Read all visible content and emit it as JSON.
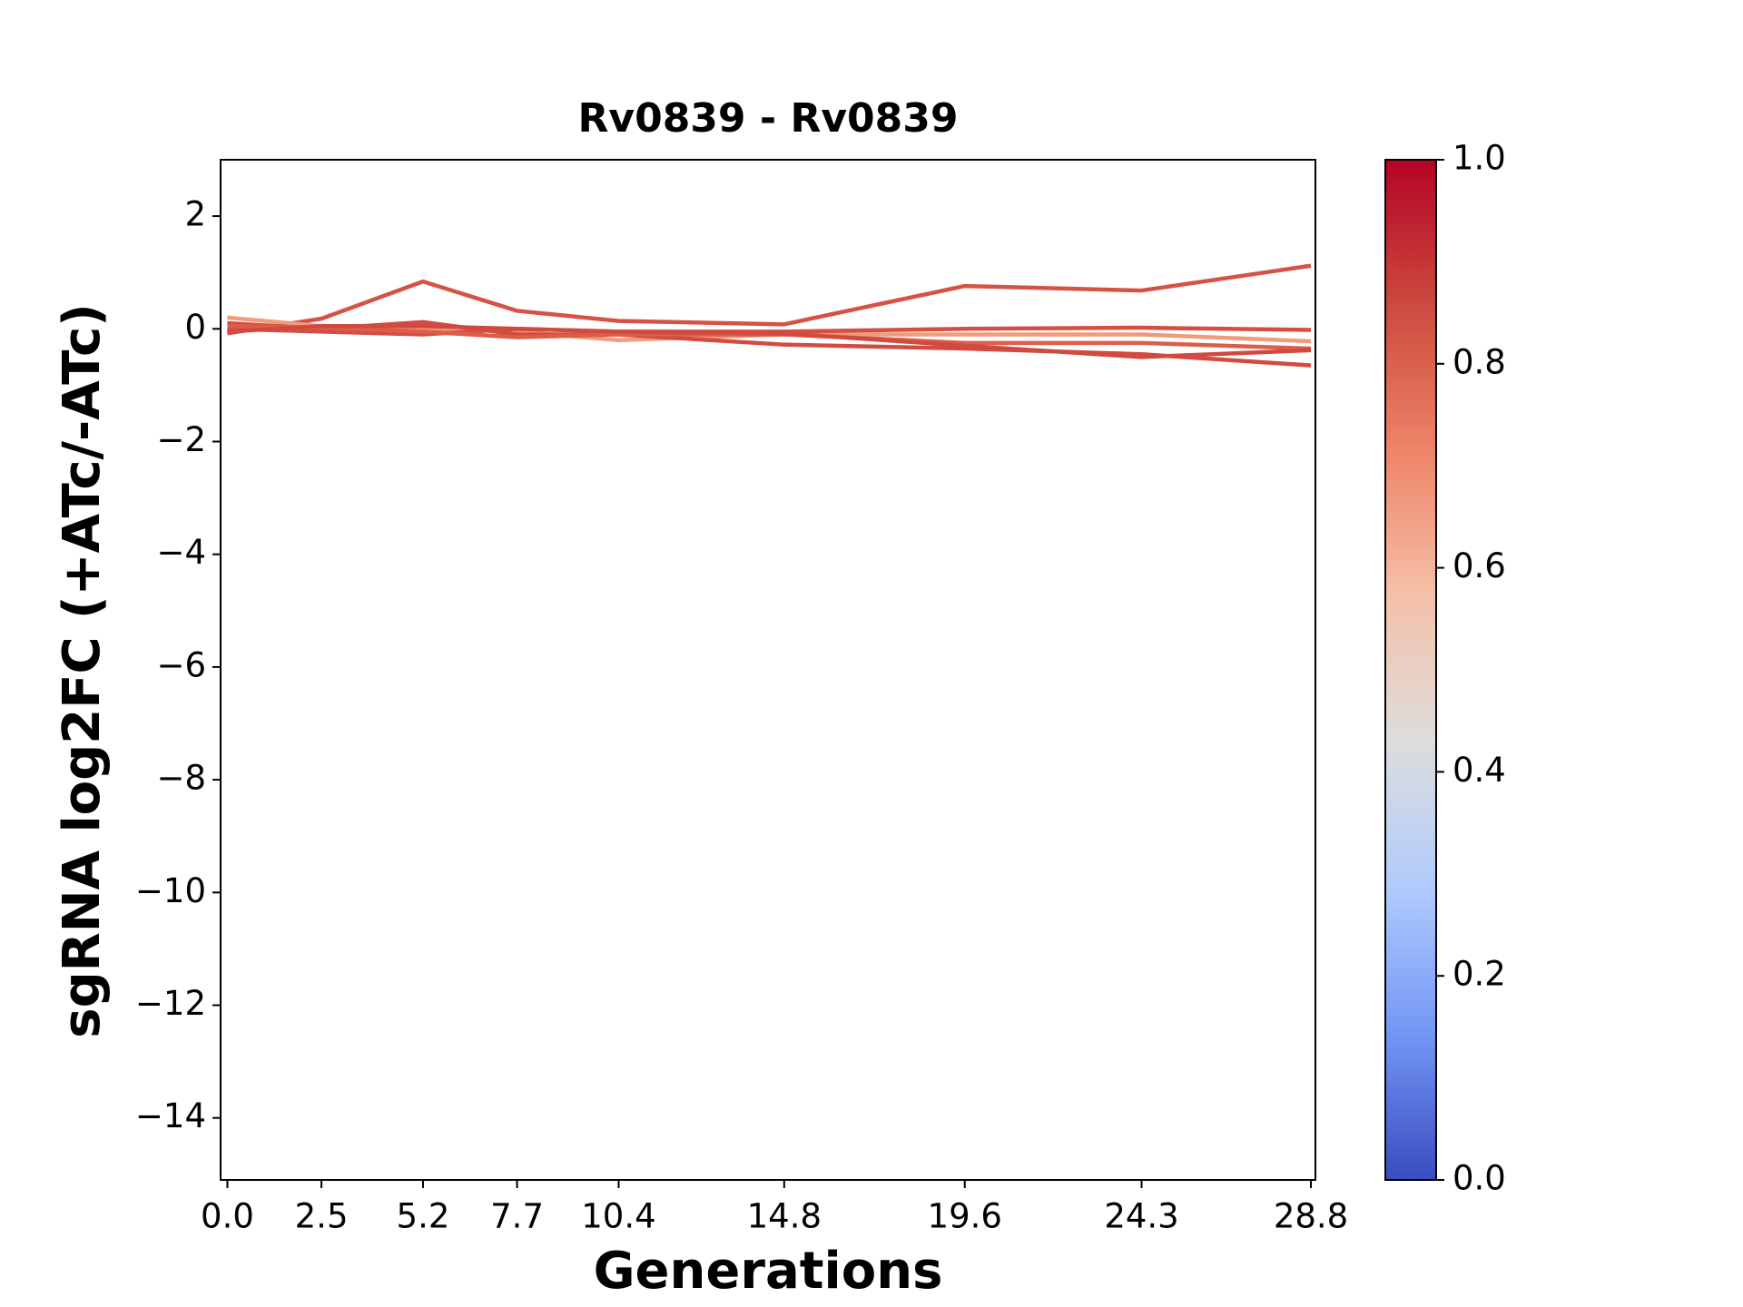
{
  "chart_data": {
    "type": "line",
    "title": "Rv0839 - Rv0839",
    "xlabel": "Generations",
    "ylabel": "sgRNA log2FC (+ATc/-ATc)",
    "x": [
      0,
      2.5,
      5.2,
      7.7,
      10.4,
      14.8,
      19.6,
      24.3,
      28.8
    ],
    "series": [
      {
        "color": "#d65244",
        "values": [
          -0.08,
          0.18,
          0.84,
          0.32,
          0.14,
          0.08,
          0.76,
          0.68,
          1.12
        ]
      },
      {
        "color": "#f09b7a",
        "values": [
          0.2,
          0.05,
          0.0,
          -0.05,
          -0.2,
          -0.1,
          -0.1,
          -0.1,
          -0.22
        ]
      },
      {
        "color": "#d24b40",
        "values": [
          0.1,
          0.0,
          0.12,
          -0.1,
          -0.1,
          -0.28,
          -0.35,
          -0.45,
          -0.65
        ]
      },
      {
        "color": "#d44e42",
        "values": [
          0.0,
          -0.05,
          -0.1,
          0.0,
          -0.05,
          -0.05,
          0.0,
          0.02,
          -0.02
        ]
      },
      {
        "color": "#dc5d4a",
        "values": [
          0.05,
          0.02,
          -0.05,
          -0.15,
          -0.1,
          -0.1,
          -0.25,
          -0.25,
          -0.35
        ]
      },
      {
        "color": "#d14a3f",
        "values": [
          -0.05,
          0.05,
          0.05,
          0.0,
          -0.05,
          -0.08,
          -0.3,
          -0.5,
          -0.38
        ]
      }
    ],
    "xlim": [
      -0.18,
      28.92
    ],
    "xticks": [
      {
        "value": 0,
        "label": "0.0"
      },
      2.5,
      5.2,
      7.7,
      10.4,
      14.8,
      19.6,
      24.3,
      28.8
    ],
    "ylim": [
      -15.1,
      3
    ],
    "yticks": [
      {
        "value": -14,
        "label": "−14"
      },
      {
        "value": -12,
        "label": "−12"
      },
      {
        "value": -10,
        "label": "−10"
      },
      {
        "value": -8,
        "label": "−8"
      },
      {
        "value": -6,
        "label": "−6"
      },
      {
        "value": -4,
        "label": "−4"
      },
      {
        "value": -2,
        "label": "−2"
      },
      0,
      2
    ],
    "colorbar": {
      "lim": [
        0,
        1
      ],
      "ticks": [
        {
          "value": 0,
          "label": "0.0"
        },
        {
          "value": 0.2,
          "label": "0.2"
        },
        {
          "value": 0.4,
          "label": "0.4"
        },
        {
          "value": 0.6,
          "label": "0.6"
        },
        {
          "value": 0.8,
          "label": "0.8"
        },
        {
          "value": 1,
          "label": "1.0"
        }
      ],
      "colors": [
        "#3b4cc0",
        "#7396f5",
        "#b0cbfc",
        "#dcdddd",
        "#f5c1a9",
        "#ee8468",
        "#cc4a3e",
        "#b40426"
      ]
    }
  }
}
